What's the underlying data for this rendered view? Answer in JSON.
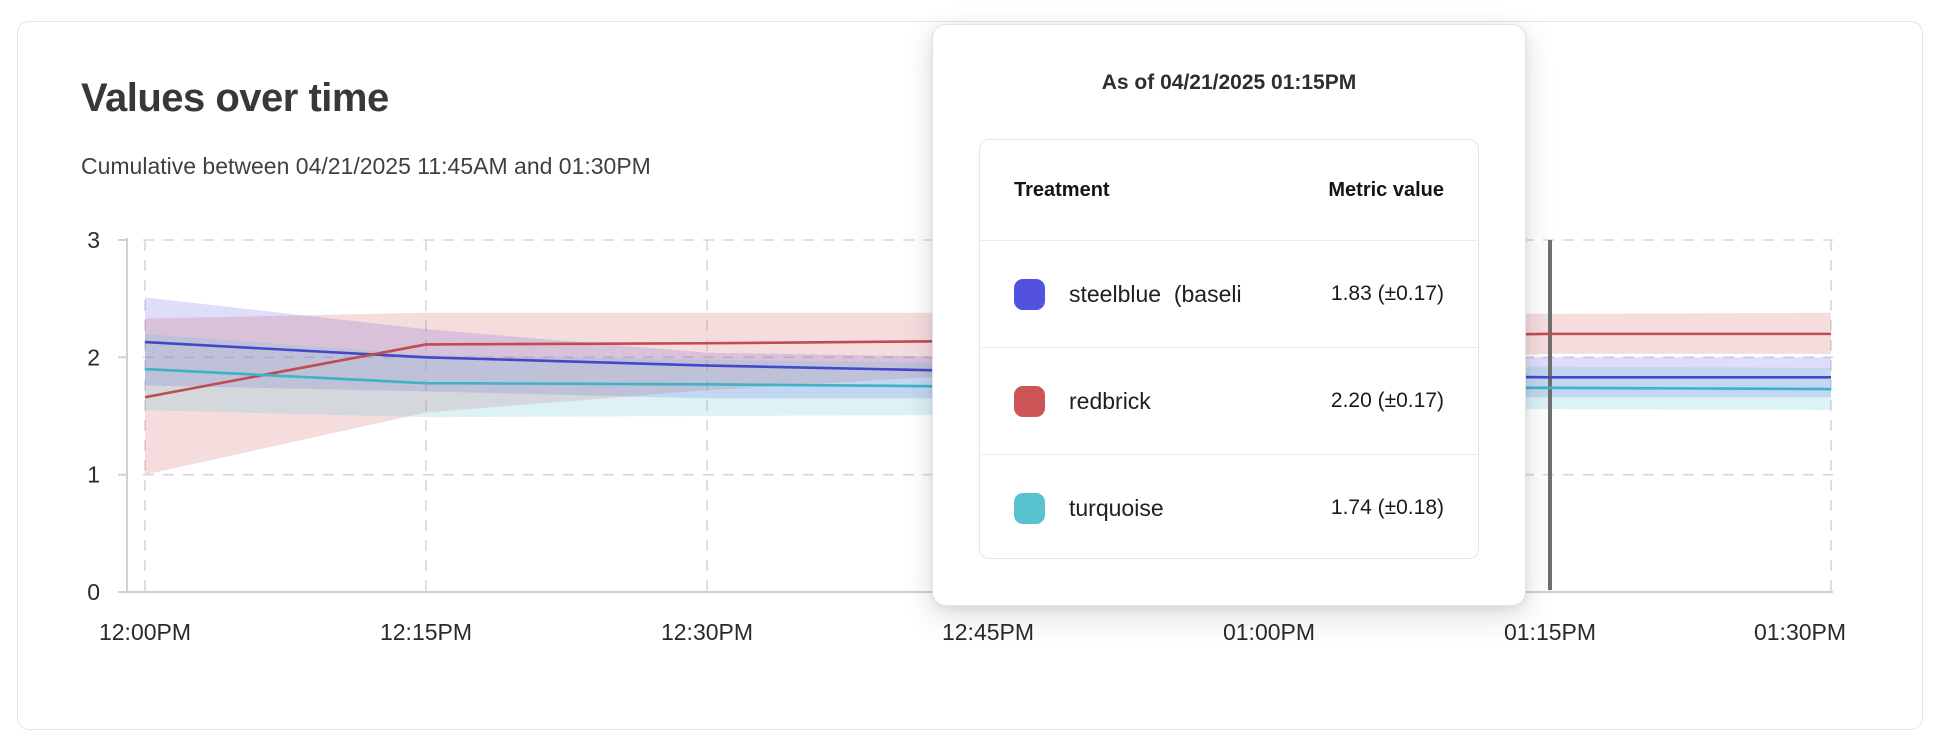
{
  "header": {
    "title": "Values over time",
    "subtitle": "Cumulative between 04/21/2025 11:45AM and 01:30PM"
  },
  "tooltip": {
    "title": "As of 04/21/2025 01:15PM",
    "columns": {
      "treatment": "Treatment",
      "metric": "Metric value"
    },
    "rows": [
      {
        "label": "steelblue  (baseli",
        "value": "1.83 (±0.17)",
        "color": "#5251e0"
      },
      {
        "label": "redbrick",
        "value": "2.20 (±0.17)",
        "color": "#cd5457"
      },
      {
        "label": "turquoise",
        "value": "1.74 (±0.18)",
        "color": "#58c3ce"
      }
    ],
    "cursor_time": "01:15PM"
  },
  "chart_data": {
    "type": "line",
    "title": "Values over time",
    "xlabel": "",
    "ylabel": "",
    "categories": [
      "12:00PM",
      "12:15PM",
      "12:30PM",
      "12:45PM",
      "01:00PM",
      "01:15PM",
      "01:30PM"
    ],
    "y_ticks": [
      0,
      1,
      2,
      3
    ],
    "ylim": [
      0,
      3
    ],
    "grid": "dashed",
    "legend_position": "none",
    "cursor_index": 5,
    "cursor_color": "#6f6f6f",
    "axis_color": "#cfcfd4",
    "grid_color": "#d7d7db",
    "series": [
      {
        "name": "steelblue (baseline)",
        "color": "#4448c8",
        "band_color": "rgba(105,100,230,0.22)",
        "values": [
          2.13,
          2.0,
          1.93,
          1.88,
          1.85,
          1.83,
          1.83
        ],
        "upper": [
          2.51,
          2.24,
          2.04,
          2.0,
          2.0,
          2.0,
          2.0
        ],
        "lower": [
          1.76,
          1.71,
          1.65,
          1.65,
          1.66,
          1.66,
          1.66
        ]
      },
      {
        "name": "redbrick",
        "color": "#c04b50",
        "band_color": "rgba(205,85,90,0.20)",
        "values": [
          1.66,
          2.11,
          2.12,
          2.14,
          2.17,
          2.2,
          2.2
        ],
        "upper": [
          2.33,
          2.38,
          2.38,
          2.38,
          2.38,
          2.37,
          2.38
        ],
        "lower": [
          1.0,
          1.53,
          1.72,
          1.86,
          1.96,
          2.03,
          2.03
        ]
      },
      {
        "name": "turquoise",
        "color": "#3fb2c5",
        "band_color": "rgba(95,198,210,0.22)",
        "values": [
          1.9,
          1.78,
          1.77,
          1.75,
          1.74,
          1.74,
          1.73
        ],
        "upper": [
          2.2,
          2.02,
          1.98,
          1.95,
          1.93,
          1.92,
          1.91
        ],
        "lower": [
          1.55,
          1.49,
          1.5,
          1.51,
          1.53,
          1.56,
          1.55
        ]
      }
    ]
  }
}
